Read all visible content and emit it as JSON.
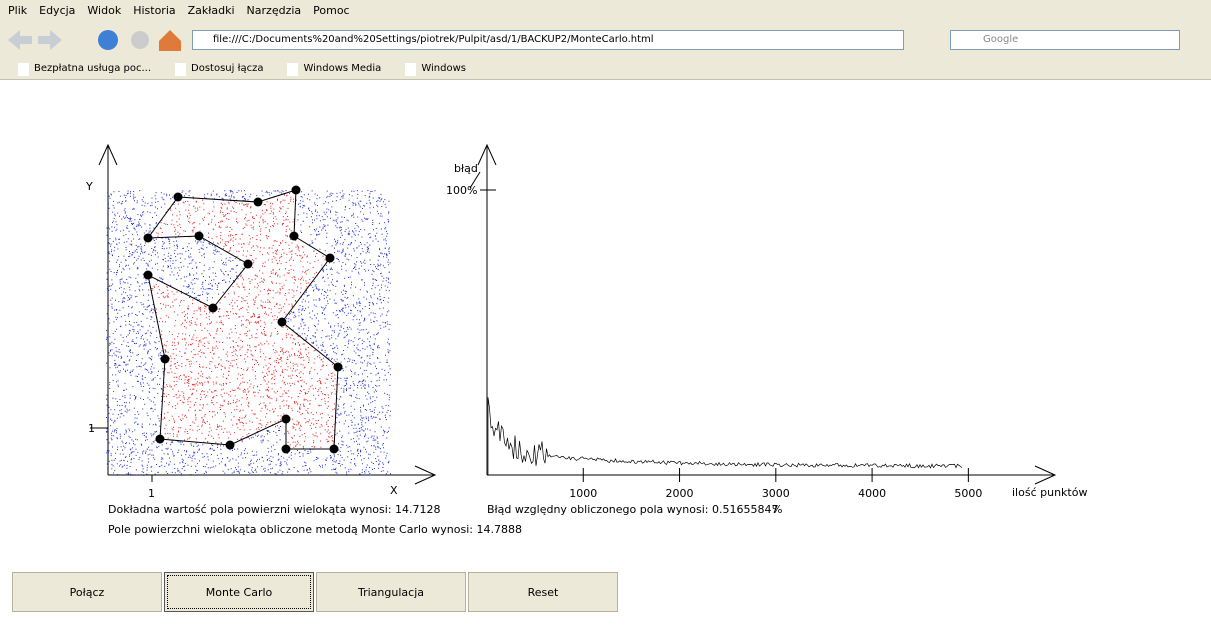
{
  "browser": {
    "menu": [
      "Plik",
      "Edycja",
      "Widok",
      "Historia",
      "Zakładki",
      "Narzędzia",
      "Pomoc"
    ],
    "url": "file:///C:/Documents%20and%20Settings/piotrek/Pulpit/asd/1/BACKUP2/MonteCarlo.html",
    "search_placeholder": "Google",
    "bookmarks": [
      "Bezpłatna usługa poc...",
      "Dostosuj łącza",
      "Windows Media",
      "Windows"
    ]
  },
  "left_plot": {
    "y_label": "Y",
    "x_label": "X",
    "x_tick": "1",
    "y_tick": "1"
  },
  "right_plot": {
    "y_label": "błąd",
    "y_top_label": "100%",
    "x_label": "ilość punktów",
    "xlim": [
      0,
      5900
    ],
    "xticks": [
      1000,
      2000,
      3000,
      4000,
      5000
    ]
  },
  "results": {
    "exact": "Dokładna wartość pola powierzni wielokąta wynosi: 14.7128",
    "monte_carlo": "Pole powierzchni wielokąta obliczone metodą Monte Carlo wynosi: 14.7888",
    "error": "Błąd względny obliczonego pola wynosi: 0.51655847",
    "error_unit": "%"
  },
  "buttons": [
    "Połącz",
    "Monte Carlo",
    "Triangulacja",
    "Reset"
  ]
}
